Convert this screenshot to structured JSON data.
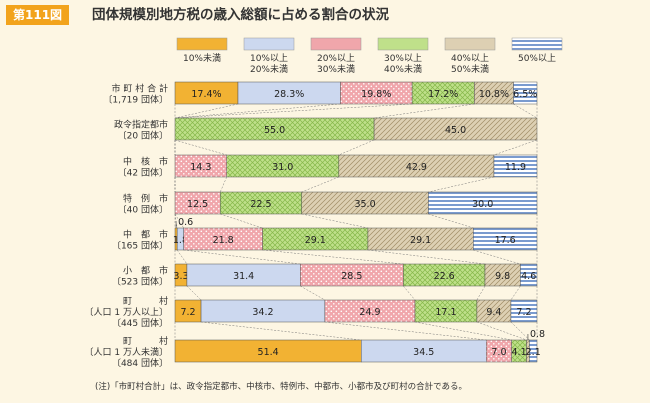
{
  "header": {
    "badge": "第111図",
    "title": "団体規模別地方税の歳入総額に占める割合の状況"
  },
  "colors": {
    "orange": "#f2b233",
    "blue_light": "#ccd8ef",
    "pink": "#f0a6ab",
    "green": "#bfe08a",
    "tan": "#ddd0b3",
    "stripe_blue": "#7a9bcf",
    "page_bg": "#fdf6e3"
  },
  "chart_data": {
    "type": "bar",
    "legend": [
      "10%未満",
      "10%以上\n20%未満",
      "20%以上\n30%未満",
      "30%以上\n40%未満",
      "40%以上\n50%未満",
      "50%以上"
    ],
    "categories": [
      [
        "市 町 村 合 計",
        "〔1,719 団体〕"
      ],
      [
        "政令指定都市",
        "〔20 団体〕"
      ],
      [
        "中　核　市",
        "〔42 団体〕"
      ],
      [
        "特　例　市",
        "〔40 団体〕"
      ],
      [
        "中　都　市",
        "〔165 団体〕"
      ],
      [
        "小　都　市",
        "〔523 団体〕"
      ],
      [
        "町　　　村",
        "〔人口 1 万人以上〕",
        "〔445 団体〕"
      ],
      [
        "町　　　村",
        "〔人口 1 万人未満〕",
        "〔484 団体〕"
      ]
    ],
    "values": [
      [
        17.4,
        28.3,
        19.8,
        17.2,
        10.8,
        6.5
      ],
      [
        0,
        0,
        0,
        55.0,
        45.0,
        0
      ],
      [
        0,
        0,
        14.3,
        31.0,
        42.9,
        11.9
      ],
      [
        0,
        0,
        12.5,
        22.5,
        35.0,
        30.0
      ],
      [
        0.6,
        1.8,
        21.8,
        29.1,
        29.1,
        17.6
      ],
      [
        3.3,
        31.4,
        28.5,
        22.6,
        9.8,
        4.6
      ],
      [
        7.2,
        34.2,
        24.9,
        17.1,
        9.4,
        7.2
      ],
      [
        51.4,
        34.5,
        7.0,
        4.1,
        0.8,
        2.1
      ]
    ],
    "labels": [
      [
        "17.4%",
        "28.3%",
        "19.8%",
        "17.2%",
        "10.8%",
        "6.5%"
      ],
      [
        "",
        "",
        "",
        "55.0",
        "45.0",
        ""
      ],
      [
        "",
        "",
        "14.3",
        "31.0",
        "42.9",
        "11.9"
      ],
      [
        "",
        "",
        "12.5",
        "22.5",
        "35.0",
        "30.0"
      ],
      [
        "0.6",
        "1.8",
        "21.8",
        "29.1",
        "29.1",
        "17.6"
      ],
      [
        "3.3",
        "31.4",
        "28.5",
        "22.6",
        "9.8",
        "4.6"
      ],
      [
        "7.2",
        "34.2",
        "24.9",
        "17.1",
        "9.4",
        "7.2"
      ],
      [
        "51.4",
        "34.5",
        "7.0",
        "4.1",
        "0.8",
        "2.1"
      ]
    ]
  },
  "note": "(注)「市町村合計」は、政令指定都市、中核市、特例市、中都市、小都市及び町村の合計である。"
}
